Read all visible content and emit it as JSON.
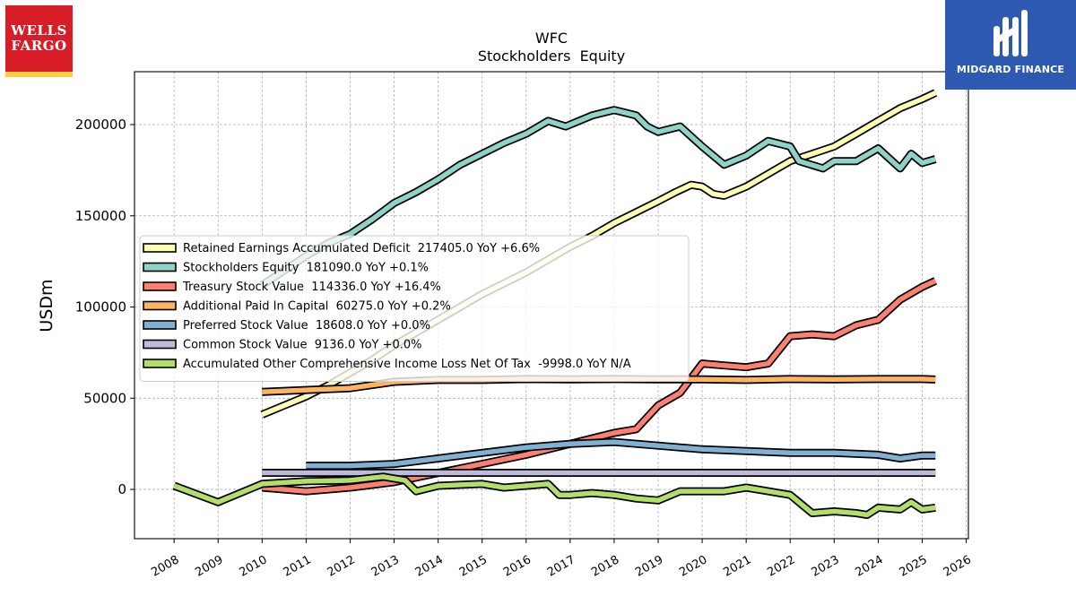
{
  "logos": {
    "wells_fargo_line1": "WELLS",
    "wells_fargo_line2": "FARGO",
    "midgard": "MIDGARD FINANCE"
  },
  "chart_data": {
    "type": "line",
    "title": "WFC",
    "subtitle": "Stockholders  Equity",
    "xlabel": "",
    "ylabel": "USDm",
    "xlim": [
      2007.1,
      2026.05
    ],
    "ylim": [
      -27000,
      229000
    ],
    "x_ticks": [
      2008,
      2009,
      2010,
      2011,
      2012,
      2013,
      2014,
      2015,
      2016,
      2017,
      2018,
      2019,
      2020,
      2021,
      2022,
      2023,
      2024,
      2025,
      2026
    ],
    "y_ticks": [
      0,
      50000,
      100000,
      150000,
      200000
    ],
    "grid": true,
    "legend_position": "center-left",
    "series": [
      {
        "name": "Retained Earnings Accumulated Deficit  217405.0 YoY +6.6%",
        "color": "#ffffb3",
        "points": [
          [
            2010,
            41000
          ],
          [
            2010.5,
            46000
          ],
          [
            2011,
            51000
          ],
          [
            2011.5,
            57000
          ],
          [
            2012,
            64000
          ],
          [
            2012.5,
            71000
          ],
          [
            2013,
            79000
          ],
          [
            2013.5,
            86000
          ],
          [
            2014,
            93000
          ],
          [
            2014.5,
            100000
          ],
          [
            2015,
            107000
          ],
          [
            2015.5,
            113000
          ],
          [
            2016,
            119000
          ],
          [
            2016.5,
            126000
          ],
          [
            2017,
            133000
          ],
          [
            2017.5,
            139000
          ],
          [
            2018,
            146000
          ],
          [
            2018.5,
            152000
          ],
          [
            2019,
            158000
          ],
          [
            2019.4,
            163000
          ],
          [
            2019.75,
            167000
          ],
          [
            2020,
            166000
          ],
          [
            2020.25,
            162000
          ],
          [
            2020.5,
            161000
          ],
          [
            2021,
            166000
          ],
          [
            2021.5,
            173000
          ],
          [
            2022,
            180000
          ],
          [
            2022.5,
            184000
          ],
          [
            2023,
            188000
          ],
          [
            2023.5,
            195000
          ],
          [
            2024,
            202000
          ],
          [
            2024.5,
            209000
          ],
          [
            2025,
            214000
          ],
          [
            2025.3,
            217405
          ]
        ]
      },
      {
        "name": "Stockholders Equity  181090.0 YoY +0.1%",
        "color": "#8dd3c7",
        "points": [
          [
            2010,
            112000
          ],
          [
            2010.5,
            120000
          ],
          [
            2011,
            128000
          ],
          [
            2011.5,
            135000
          ],
          [
            2012,
            140000
          ],
          [
            2012.5,
            148000
          ],
          [
            2013,
            157000
          ],
          [
            2013.5,
            163000
          ],
          [
            2014,
            170000
          ],
          [
            2014.5,
            178000
          ],
          [
            2015,
            184000
          ],
          [
            2015.5,
            190000
          ],
          [
            2016,
            195000
          ],
          [
            2016.5,
            202000
          ],
          [
            2016.9,
            199000
          ],
          [
            2017.5,
            205000
          ],
          [
            2018,
            208000
          ],
          [
            2018.5,
            205000
          ],
          [
            2018.75,
            199000
          ],
          [
            2019,
            196000
          ],
          [
            2019.5,
            199000
          ],
          [
            2020,
            188000
          ],
          [
            2020.5,
            178000
          ],
          [
            2021,
            183000
          ],
          [
            2021.5,
            191000
          ],
          [
            2022,
            188000
          ],
          [
            2022.2,
            180000
          ],
          [
            2022.75,
            176000
          ],
          [
            2023,
            180000
          ],
          [
            2023.5,
            180000
          ],
          [
            2024,
            187000
          ],
          [
            2024.5,
            176000
          ],
          [
            2024.75,
            184000
          ],
          [
            2025,
            179000
          ],
          [
            2025.3,
            181090
          ]
        ]
      },
      {
        "name": "Treasury Stock Value  114336.0 YoY +16.4%",
        "color": "#fb8072",
        "points": [
          [
            2010,
            1000
          ],
          [
            2011,
            -1000
          ],
          [
            2012,
            1000
          ],
          [
            2013,
            4000
          ],
          [
            2014,
            9000
          ],
          [
            2015,
            14000
          ],
          [
            2016,
            19000
          ],
          [
            2017,
            25000
          ],
          [
            2018,
            31000
          ],
          [
            2018.5,
            33000
          ],
          [
            2019,
            46000
          ],
          [
            2019.5,
            53000
          ],
          [
            2020,
            69000
          ],
          [
            2020.5,
            68000
          ],
          [
            2021,
            67000
          ],
          [
            2021.5,
            69000
          ],
          [
            2022,
            84000
          ],
          [
            2022.5,
            85000
          ],
          [
            2023,
            84000
          ],
          [
            2023.5,
            90000
          ],
          [
            2024,
            93000
          ],
          [
            2024.5,
            104000
          ],
          [
            2025,
            111000
          ],
          [
            2025.3,
            114336
          ]
        ]
      },
      {
        "name": "Additional Paid In Capital  60275.0 YoY +0.2%",
        "color": "#fdb462",
        "points": [
          [
            2010,
            53500
          ],
          [
            2011,
            54500
          ],
          [
            2012,
            55500
          ],
          [
            2013,
            59000
          ],
          [
            2014,
            60000
          ],
          [
            2015,
            60000
          ],
          [
            2016,
            60500
          ],
          [
            2017,
            60300
          ],
          [
            2018,
            60500
          ],
          [
            2019,
            60300
          ],
          [
            2020,
            60300
          ],
          [
            2021,
            60000
          ],
          [
            2022,
            60500
          ],
          [
            2023,
            60300
          ],
          [
            2024,
            60500
          ],
          [
            2025,
            60500
          ],
          [
            2025.3,
            60275
          ]
        ]
      },
      {
        "name": "Preferred Stock Value  18608.0 YoY +0.0%",
        "color": "#80b1d3",
        "points": [
          [
            2011,
            13000
          ],
          [
            2012,
            13000
          ],
          [
            2013,
            14000
          ],
          [
            2014,
            17000
          ],
          [
            2015,
            20000
          ],
          [
            2016,
            23000
          ],
          [
            2017,
            25000
          ],
          [
            2018,
            26000
          ],
          [
            2019,
            24000
          ],
          [
            2020,
            22000
          ],
          [
            2021,
            21000
          ],
          [
            2022,
            20000
          ],
          [
            2023,
            20000
          ],
          [
            2024,
            19000
          ],
          [
            2024.5,
            17000
          ],
          [
            2025,
            18608
          ],
          [
            2025.3,
            18608
          ]
        ]
      },
      {
        "name": "Common Stock Value  9136.0 YoY +0.0%",
        "color": "#bebada",
        "points": [
          [
            2010,
            9136
          ],
          [
            2025.3,
            9136
          ]
        ]
      },
      {
        "name": "Accumulated Other Comprehensive Income Loss Net Of Tax  -9998.0 YoY N/A",
        "color": "#b3de69",
        "points": [
          [
            2008,
            2000
          ],
          [
            2009,
            -7000
          ],
          [
            2010,
            3000
          ],
          [
            2011,
            4500
          ],
          [
            2012,
            5000
          ],
          [
            2012.75,
            7000
          ],
          [
            2013.25,
            5000
          ],
          [
            2013.5,
            -1000
          ],
          [
            2014,
            2000
          ],
          [
            2015,
            3000
          ],
          [
            2015.5,
            1000
          ],
          [
            2016,
            2000
          ],
          [
            2016.5,
            3000
          ],
          [
            2016.75,
            -3000
          ],
          [
            2017,
            -3000
          ],
          [
            2017.5,
            -2000
          ],
          [
            2018,
            -3000
          ],
          [
            2018.5,
            -5000
          ],
          [
            2019,
            -6000
          ],
          [
            2019.5,
            -1000
          ],
          [
            2020,
            -1000
          ],
          [
            2020.5,
            -1000
          ],
          [
            2021,
            1000
          ],
          [
            2021.5,
            -1000
          ],
          [
            2022,
            -3000
          ],
          [
            2022.5,
            -13000
          ],
          [
            2023,
            -12000
          ],
          [
            2023.5,
            -13000
          ],
          [
            2023.75,
            -14000
          ],
          [
            2024,
            -10000
          ],
          [
            2024.5,
            -11000
          ],
          [
            2024.75,
            -7000
          ],
          [
            2025,
            -11000
          ],
          [
            2025.3,
            -9998
          ]
        ]
      }
    ]
  }
}
